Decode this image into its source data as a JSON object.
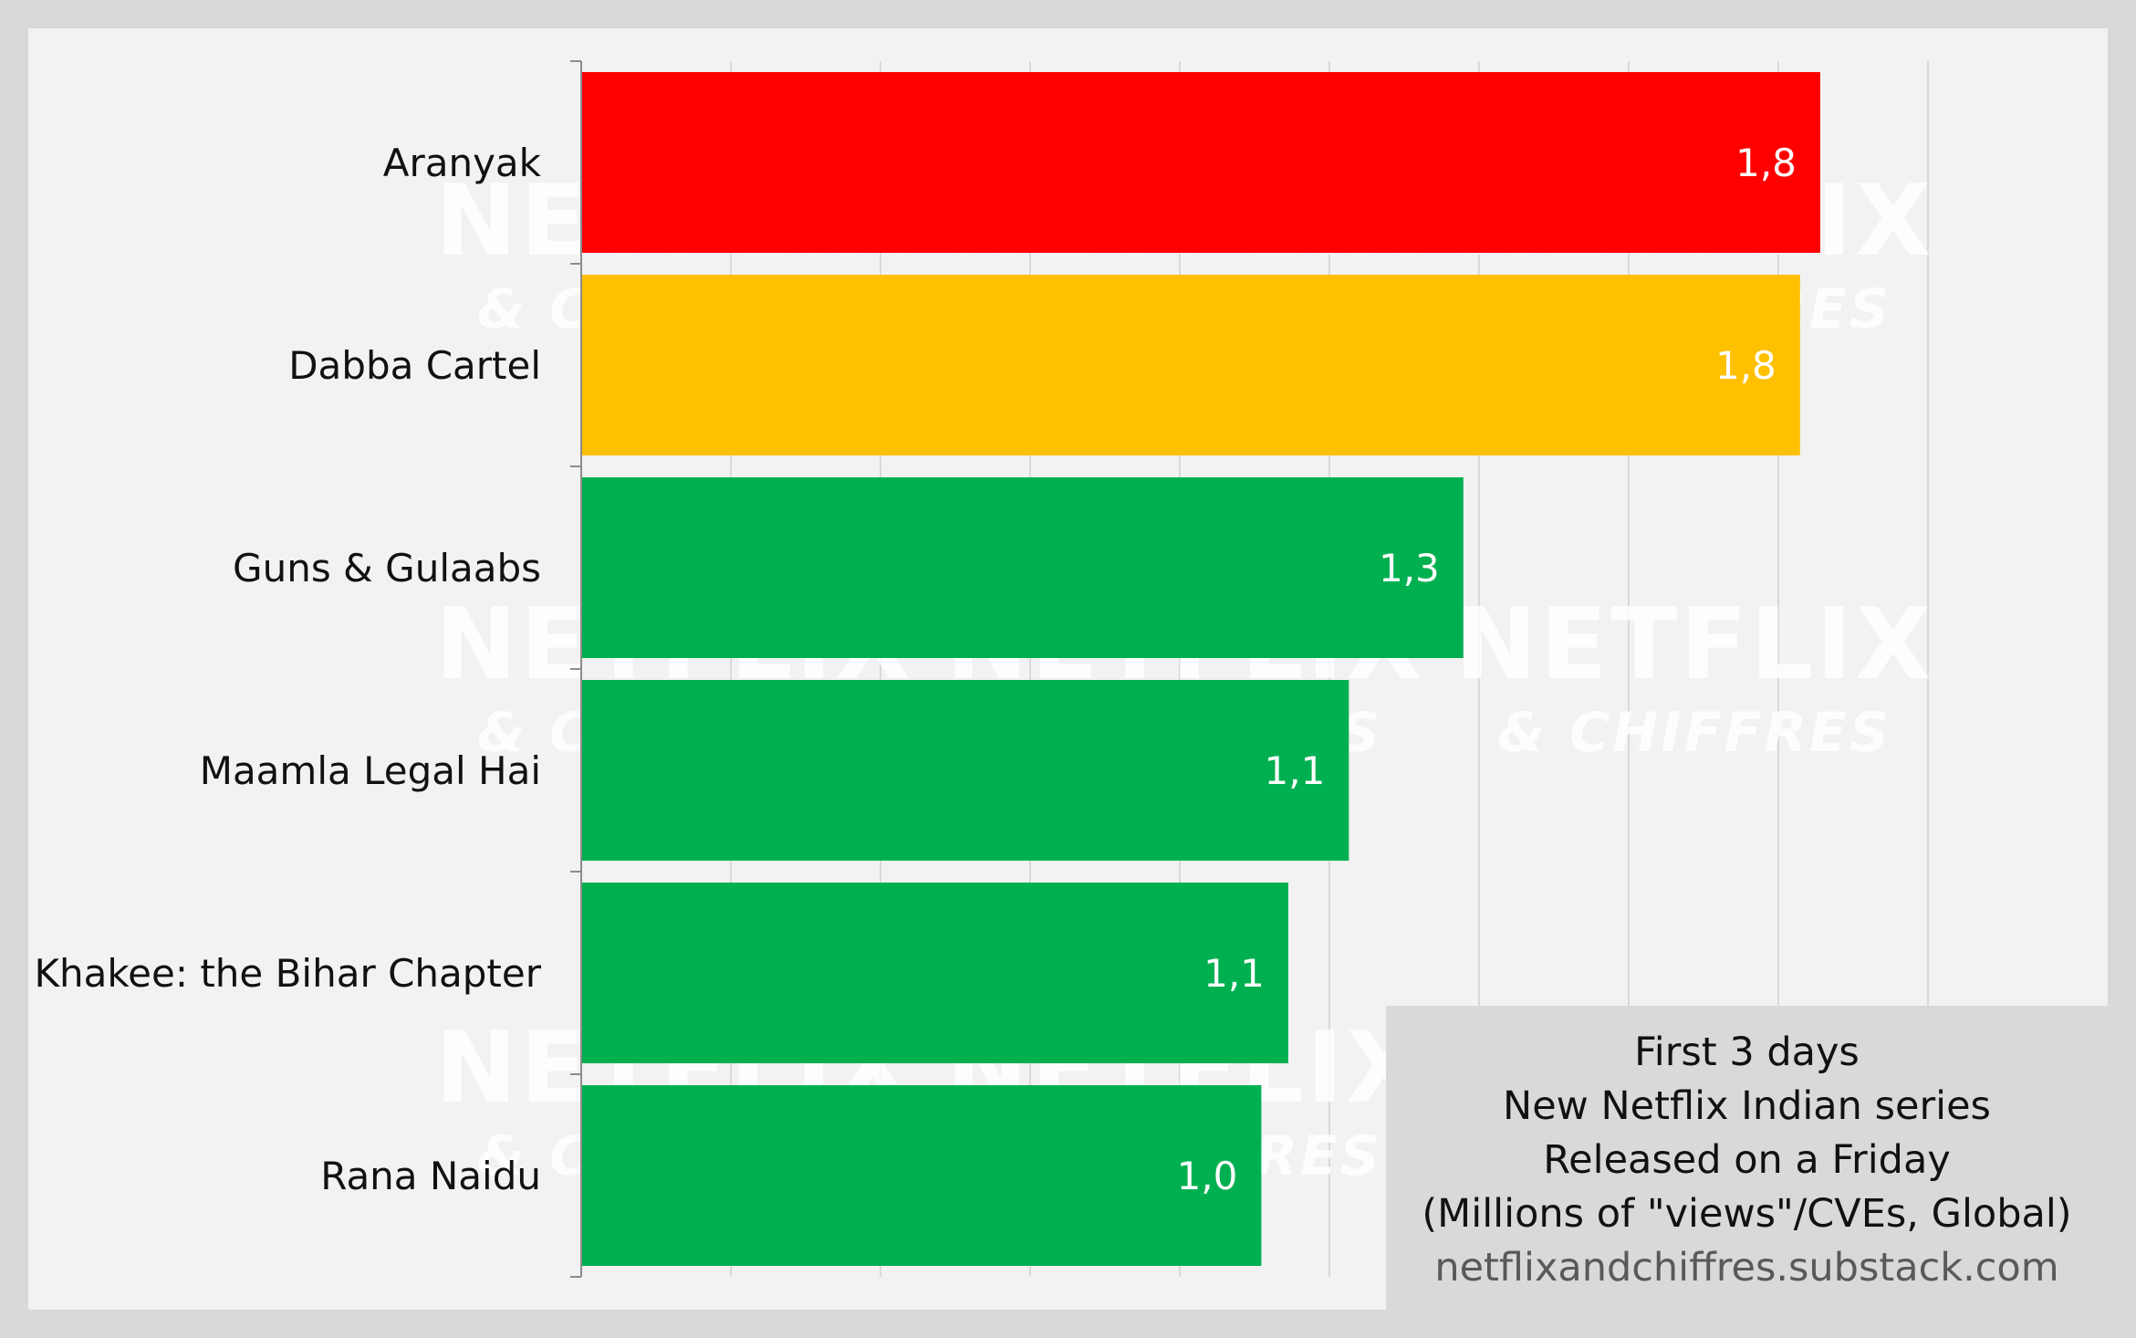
{
  "chart_data": {
    "type": "bar",
    "orientation": "horizontal",
    "categories": [
      "Aranyak",
      "Dabba Cartel",
      "Guns & Gulaabs",
      "Maamla Legal Hai",
      "Khakee: the Bihar Chapter",
      "Rana Naidu"
    ],
    "values": [
      1.84,
      1.81,
      1.31,
      1.14,
      1.05,
      1.01
    ],
    "value_labels": [
      "1,8",
      "1,8",
      "1,3",
      "1,1",
      "1,1",
      "1,0"
    ],
    "colors": [
      "#ff0000",
      "#ffc000",
      "#00b050",
      "#00b050",
      "#00b050",
      "#00b050"
    ],
    "xlim": [
      0,
      2.0
    ],
    "grid": "vertical",
    "legend": "none"
  },
  "info_box": {
    "lines": [
      "First 3 days",
      "New Netflix Indian series",
      "Released on a Friday",
      "(Millions of \"views\"/CVEs, Global)"
    ],
    "source": "netflixandchiffres.substack.com"
  },
  "watermark": {
    "brand": "NETFLIX",
    "tagline": "& CHIFFRES"
  }
}
